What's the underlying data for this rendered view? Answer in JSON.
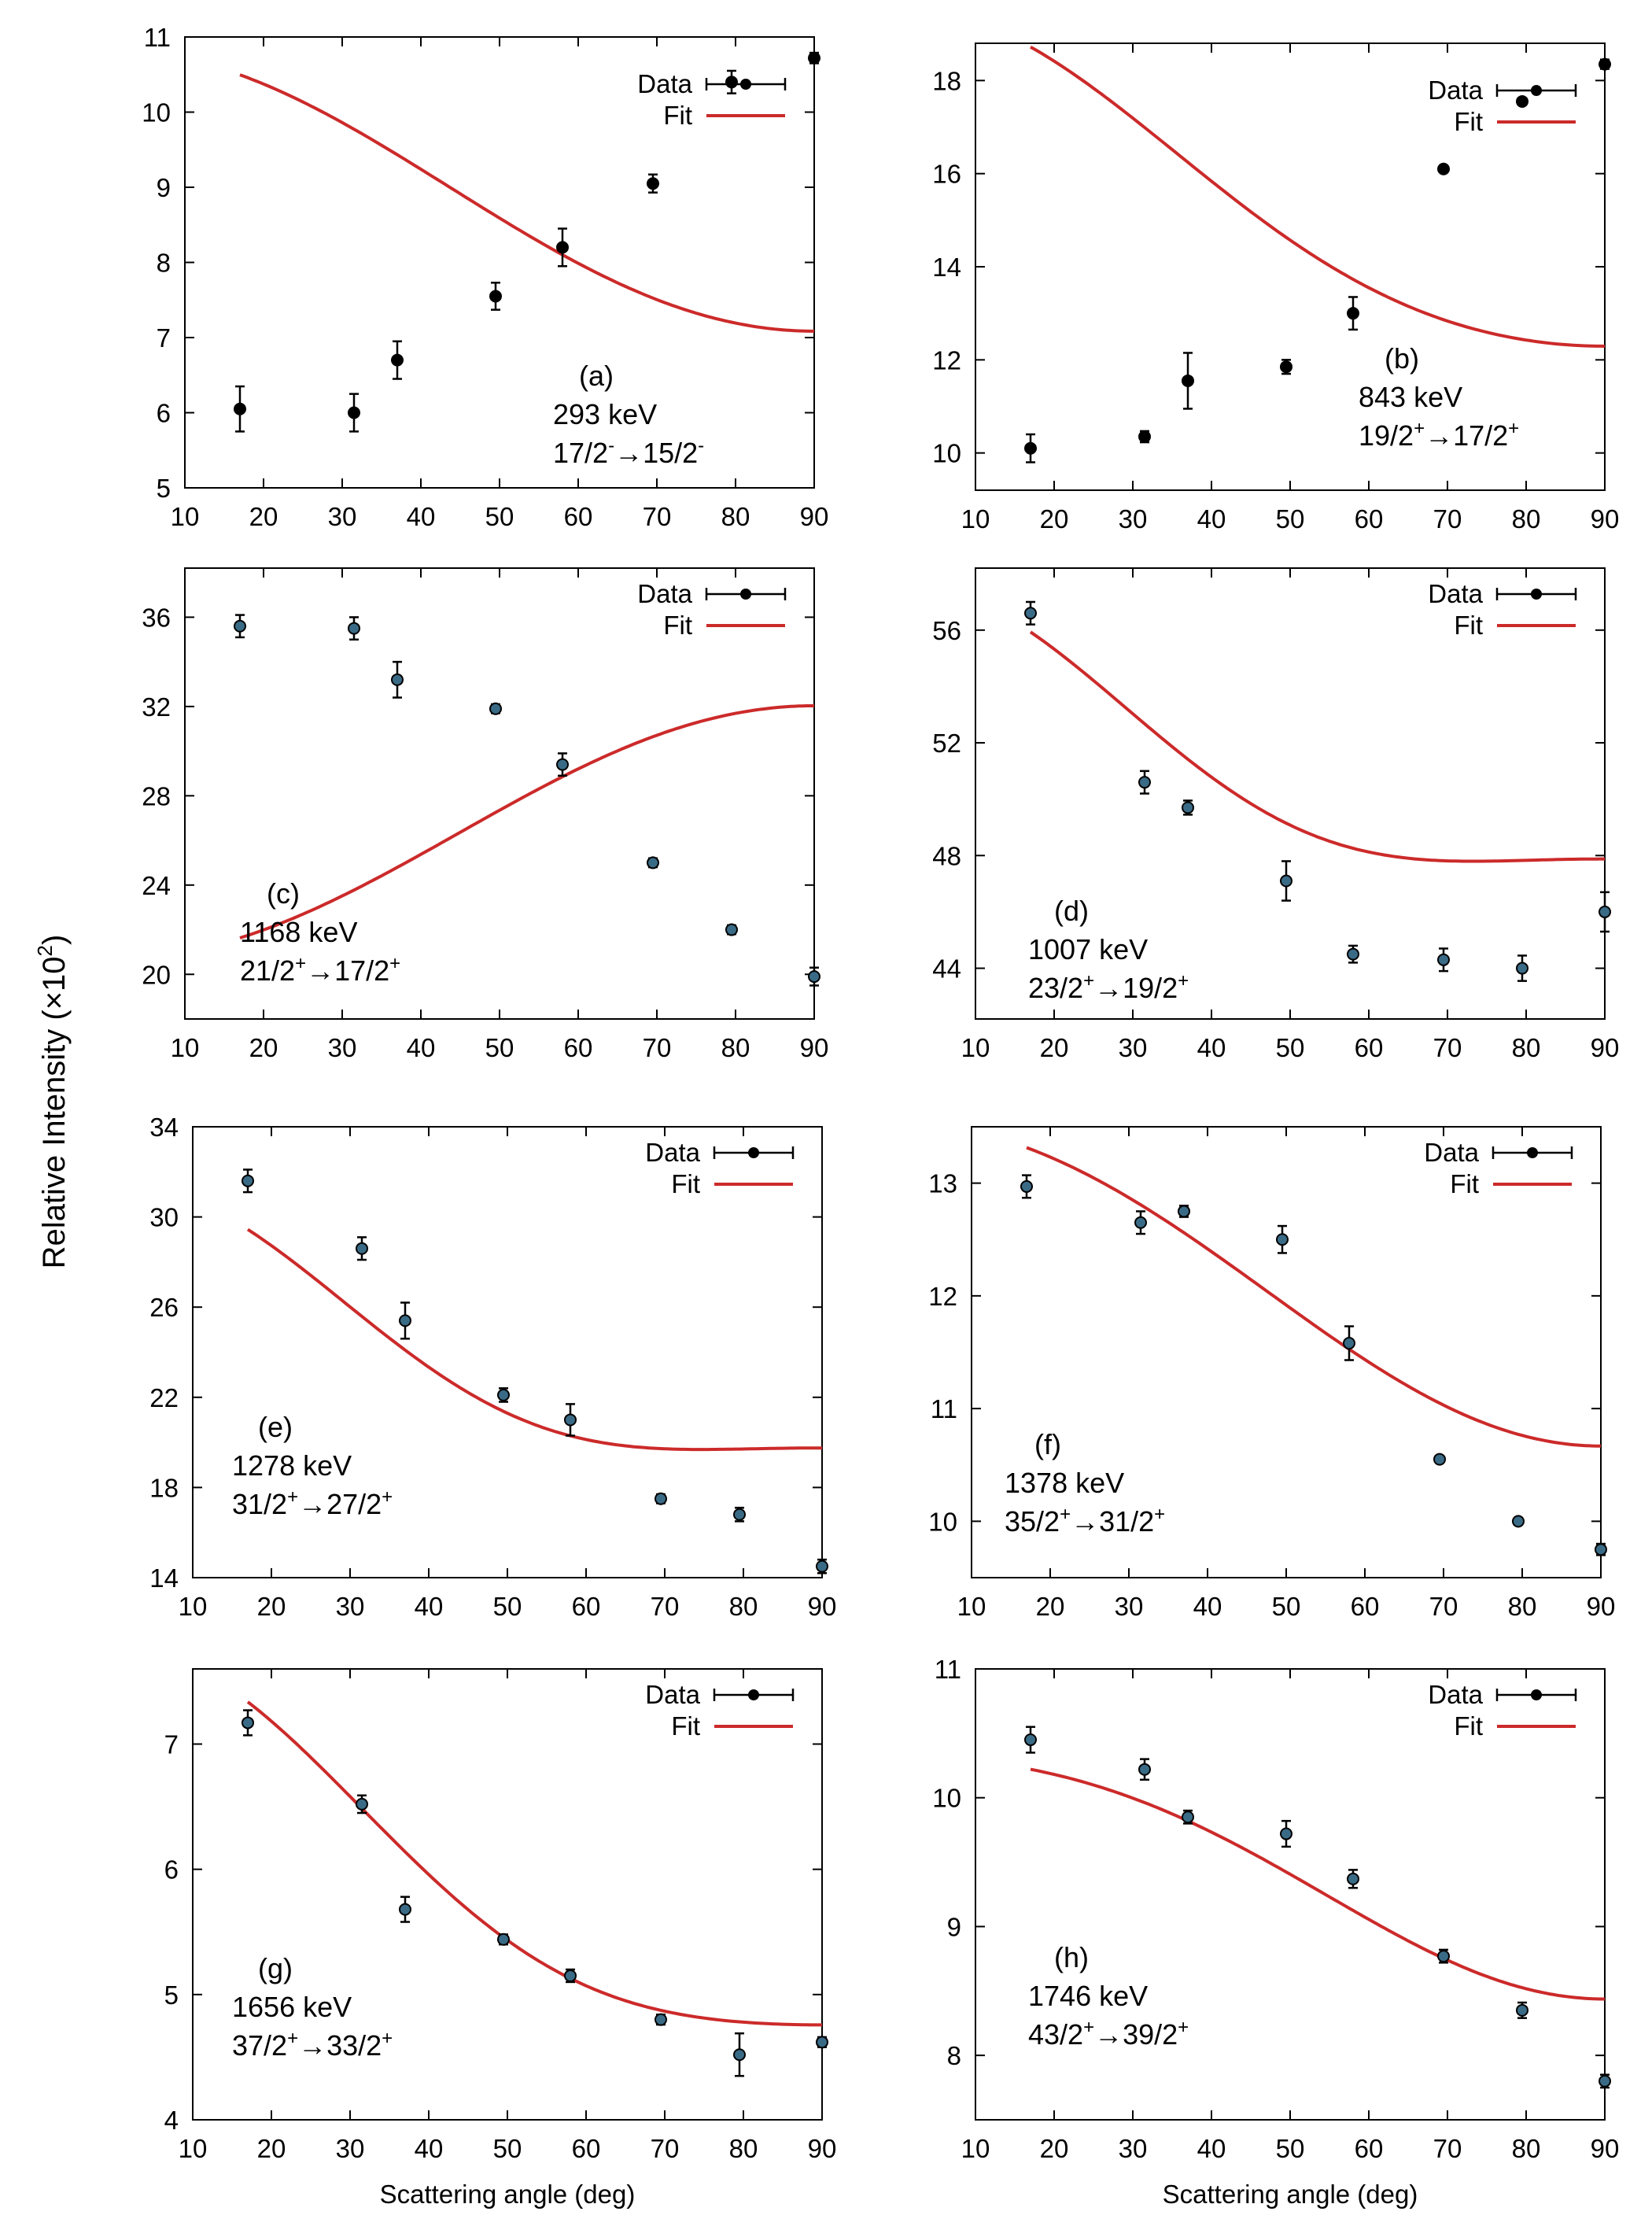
{
  "figure": {
    "ylabel_prefix": "Relative Intensity (×10",
    "ylabel_exp": "2",
    "ylabel_suffix": ")",
    "xlabel": "Scattering angle (deg)",
    "legend_data": "Data",
    "legend_fit": "Fit",
    "fit_color": "#cc2a2a",
    "marker_dark": "#000000",
    "marker_blue": "#3a6b86"
  },
  "chart_data": [
    {
      "type": "scatter",
      "panel": "a",
      "marker": "dark",
      "label": "(a)",
      "energy": "293 keV",
      "transition": [
        {
          "t": "17/2"
        },
        {
          "t": "-",
          "sup": true
        },
        {
          "t": "→15/2"
        },
        {
          "t": "-",
          "sup": true
        }
      ],
      "xlim": [
        10,
        90
      ],
      "xticks": [
        10,
        20,
        30,
        40,
        50,
        60,
        70,
        80,
        90
      ],
      "ylim": [
        5,
        11
      ],
      "yticks": [
        5,
        6,
        7,
        8,
        9,
        10,
        11
      ],
      "x": [
        17,
        31.5,
        37,
        49.5,
        58,
        69.5,
        79.5,
        90
      ],
      "y": [
        6.05,
        6.0,
        6.7,
        7.55,
        8.2,
        9.05,
        10.4,
        10.72
      ],
      "yerr": [
        0.3,
        0.25,
        0.25,
        0.18,
        0.25,
        0.12,
        0.15,
        0.07
      ],
      "fit": {
        "kind": "legendre",
        "a0": 8.31,
        "a2": 2.48,
        "a4": 0.04
      }
    },
    {
      "type": "scatter",
      "panel": "b",
      "marker": "dark",
      "label": "(b)",
      "energy": "843 keV",
      "transition": [
        {
          "t": "19/2"
        },
        {
          "t": "+",
          "sup": true
        },
        {
          "t": "→17/2"
        },
        {
          "t": "+",
          "sup": true
        }
      ],
      "xlim": [
        10,
        90
      ],
      "xticks": [
        10,
        20,
        30,
        40,
        50,
        60,
        70,
        80,
        90
      ],
      "ylim": [
        9.2,
        18.8
      ],
      "yticks": [
        10,
        12,
        14,
        16,
        18
      ],
      "x": [
        17,
        31.5,
        37,
        49.5,
        58,
        69.5,
        79.5,
        90
      ],
      "y": [
        10.1,
        10.35,
        11.55,
        11.85,
        13.0,
        16.1,
        17.55,
        18.35
      ],
      "yerr": [
        0.3,
        0.12,
        0.6,
        0.15,
        0.35,
        0.07,
        0.07,
        0.1
      ],
      "fit": {
        "kind": "legendre",
        "a0": 14.32,
        "a2": 4.57,
        "a4": 0.69
      }
    },
    {
      "type": "scatter",
      "panel": "c",
      "marker": "blue",
      "label": "(c)",
      "energy": "1168 keV",
      "transition": [
        {
          "t": "21/2"
        },
        {
          "t": "+",
          "sup": true
        },
        {
          "t": "→17/2"
        },
        {
          "t": "+",
          "sup": true
        }
      ],
      "xlim": [
        10,
        90
      ],
      "xticks": [
        10,
        20,
        30,
        40,
        50,
        60,
        70,
        80,
        90
      ],
      "ylim": [
        18,
        38.2
      ],
      "yticks": [
        20,
        24,
        28,
        32,
        36
      ],
      "x": [
        17,
        31.5,
        37,
        49.5,
        58,
        69.5,
        79.5,
        90
      ],
      "y": [
        35.6,
        35.5,
        33.2,
        31.9,
        29.4,
        25.0,
        22.0,
        19.9
      ],
      "yerr": [
        0.5,
        0.5,
        0.8,
        0.2,
        0.5,
        0.2,
        0.2,
        0.4
      ],
      "fit": {
        "kind": "legendre",
        "a0": 28.25,
        "a2": -7.58,
        "a4": -0.02
      }
    },
    {
      "type": "scatter",
      "panel": "d",
      "marker": "blue",
      "label": "(d)",
      "energy": "1007 keV",
      "transition": [
        {
          "t": "23/2"
        },
        {
          "t": "+",
          "sup": true
        },
        {
          "t": "→19/2"
        },
        {
          "t": "+",
          "sup": true
        }
      ],
      "xlim": [
        10,
        90
      ],
      "xticks": [
        10,
        20,
        30,
        40,
        50,
        60,
        70,
        80,
        90
      ],
      "ylim": [
        42.2,
        58.2
      ],
      "yticks": [
        44,
        48,
        52,
        56
      ],
      "x": [
        17,
        31.5,
        37,
        49.5,
        58,
        69.5,
        79.5,
        90
      ],
      "y": [
        56.6,
        50.6,
        49.7,
        47.1,
        44.5,
        44.3,
        44.0,
        46.0
      ],
      "yerr": [
        0.4,
        0.4,
        0.25,
        0.7,
        0.3,
        0.4,
        0.45,
        0.7
      ],
      "fit": {
        "kind": "legendre",
        "a0": 49.58,
        "a2": 5.42,
        "a4": 2.69
      }
    },
    {
      "type": "scatter",
      "panel": "e",
      "marker": "blue",
      "label": "(e)",
      "energy": "1278 keV",
      "transition": [
        {
          "t": "31/2"
        },
        {
          "t": "+",
          "sup": true
        },
        {
          "t": "→27/2"
        },
        {
          "t": "+",
          "sup": true
        }
      ],
      "xlim": [
        10,
        90
      ],
      "xticks": [
        10,
        20,
        30,
        40,
        50,
        60,
        70,
        80,
        90
      ],
      "ylim": [
        14,
        34
      ],
      "yticks": [
        14,
        18,
        22,
        26,
        30,
        34
      ],
      "x": [
        17,
        31.5,
        37,
        49.5,
        58,
        69.5,
        79.5,
        90
      ],
      "y": [
        31.6,
        28.6,
        25.4,
        22.1,
        21.0,
        17.5,
        16.8,
        14.5
      ],
      "yerr": [
        0.5,
        0.5,
        0.8,
        0.3,
        0.7,
        0.2,
        0.3,
        0.3
      ],
      "fit": {
        "kind": "legendre",
        "a0": 21.85,
        "a2": 6.54,
        "a4": 3.13
      }
    },
    {
      "type": "scatter",
      "panel": "f",
      "marker": "blue",
      "label": "(f)",
      "energy": "1378 keV",
      "transition": [
        {
          "t": "35/2"
        },
        {
          "t": "+",
          "sup": true
        },
        {
          "t": "→31/2"
        },
        {
          "t": "+",
          "sup": true
        }
      ],
      "xlim": [
        10,
        90
      ],
      "xticks": [
        10,
        20,
        30,
        40,
        50,
        60,
        70,
        80,
        90
      ],
      "ylim": [
        9.5,
        13.5
      ],
      "yticks": [
        10,
        11,
        12,
        13
      ],
      "x": [
        17,
        31.5,
        37,
        49.5,
        58,
        69.5,
        79.5,
        90
      ],
      "y": [
        12.97,
        12.65,
        12.75,
        12.5,
        11.58,
        10.55,
        10.0,
        9.75
      ],
      "yerr": [
        0.1,
        0.1,
        0.05,
        0.12,
        0.15,
        0.03,
        0.03,
        0.05
      ],
      "fit": {
        "kind": "legendre",
        "a0": 11.66,
        "a2": 1.94,
        "a4": -0.06
      }
    },
    {
      "type": "scatter",
      "panel": "g",
      "marker": "blue",
      "label": "(g)",
      "energy": "1656 keV",
      "transition": [
        {
          "t": "37/2"
        },
        {
          "t": "+",
          "sup": true
        },
        {
          "t": "→33/2"
        },
        {
          "t": "+",
          "sup": true
        }
      ],
      "xlim": [
        10,
        90
      ],
      "xticks": [
        10,
        20,
        30,
        40,
        50,
        60,
        70,
        80,
        90
      ],
      "ylim": [
        4,
        7.6
      ],
      "yticks": [
        4,
        5,
        6,
        7
      ],
      "x": [
        17,
        31.5,
        37,
        49.5,
        58,
        69.5,
        79.5,
        90
      ],
      "y": [
        7.17,
        6.52,
        5.68,
        5.44,
        5.15,
        4.8,
        4.52,
        4.62
      ],
      "yerr": [
        0.1,
        0.07,
        0.1,
        0.04,
        0.05,
        0.04,
        0.17,
        0.04
      ],
      "fit": {
        "kind": "legendre",
        "a0": 5.45,
        "a2": 1.79,
        "a4": 0.54
      }
    },
    {
      "type": "scatter",
      "panel": "h",
      "marker": "blue",
      "label": "(h)",
      "energy": "1746 keV",
      "transition": [
        {
          "t": "43/2"
        },
        {
          "t": "+",
          "sup": true
        },
        {
          "t": "→39/2"
        },
        {
          "t": "+",
          "sup": true
        }
      ],
      "xlim": [
        10,
        90
      ],
      "xticks": [
        10,
        20,
        30,
        40,
        50,
        60,
        70,
        80,
        90
      ],
      "ylim": [
        7.5,
        11
      ],
      "yticks": [
        8,
        9,
        10,
        11
      ],
      "x": [
        17,
        31.5,
        37,
        49.5,
        58,
        69.5,
        79.5,
        90
      ],
      "y": [
        10.45,
        10.22,
        9.85,
        9.72,
        9.37,
        8.77,
        8.35,
        7.8
      ],
      "yerr": [
        0.1,
        0.08,
        0.05,
        0.1,
        0.07,
        0.05,
        0.06,
        0.05
      ],
      "fit": {
        "kind": "legendre",
        "a0": 9.17,
        "a2": 1.33,
        "a4": -0.18
      }
    }
  ]
}
